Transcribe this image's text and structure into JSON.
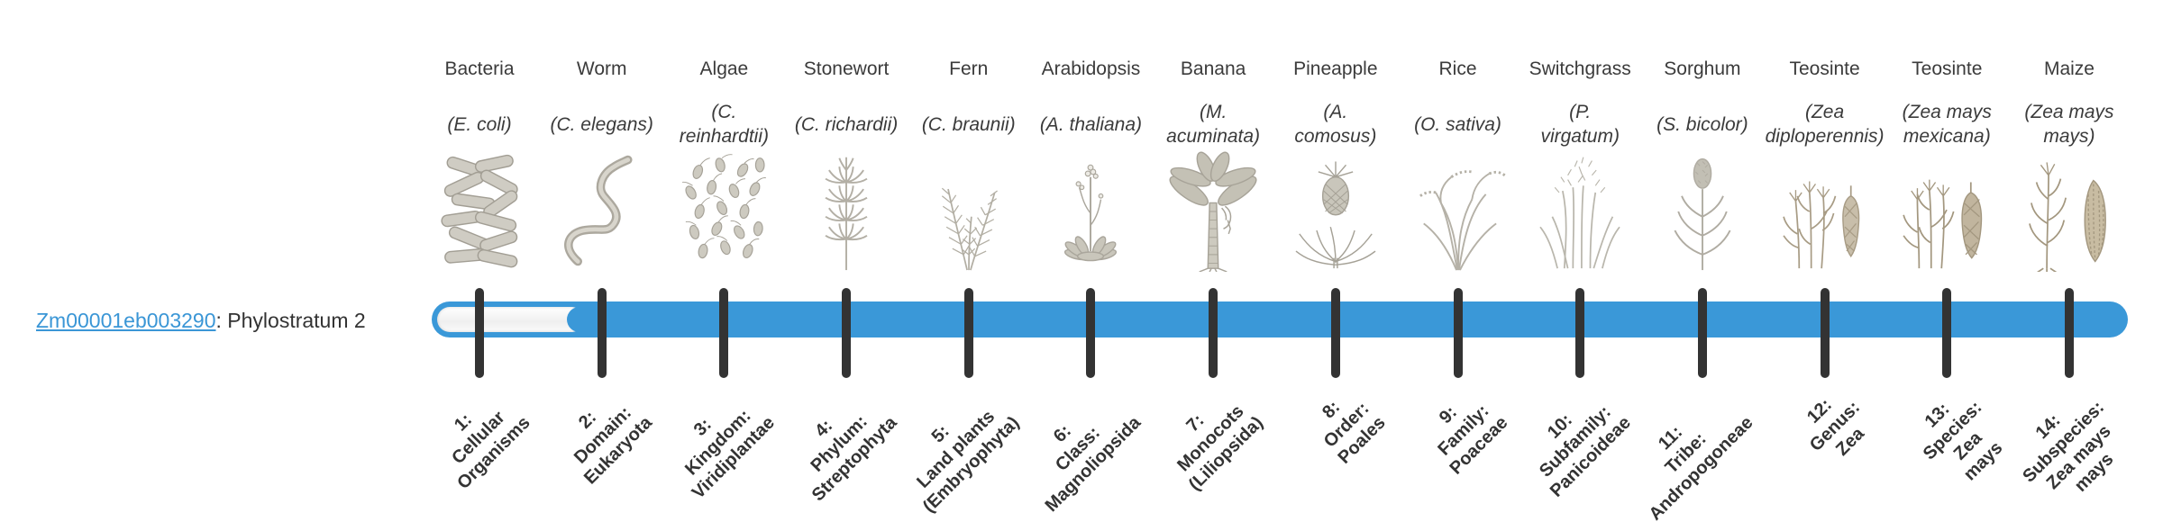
{
  "gene": {
    "id": "Zm00001eb003290",
    "phylostratum_text": ": Phylostratum 2"
  },
  "colors": {
    "bar_blue": "#3a98d8",
    "tick_dark": "#333333",
    "link_blue": "#3a96d6",
    "text_dark": "#3b3b3b"
  },
  "bar": {
    "filled_from_stratum": 2,
    "total_strata": 14
  },
  "strata": [
    {
      "tick_label": "1:\nCellular\nOrganisms",
      "organism": "Bacteria",
      "species": "(E. coli)",
      "icon": "bacteria"
    },
    {
      "tick_label": "2:\nDomain:\nEukaryota",
      "organism": "Worm",
      "species": "(C. elegans)",
      "icon": "worm"
    },
    {
      "tick_label": "3:\nKingdom:\nViridiplantae",
      "organism": "Algae",
      "species": "(C.\nreinhardtii)",
      "icon": "algae"
    },
    {
      "tick_label": "4:\nPhylum:\nStreptophyta",
      "organism": "Stonewort",
      "species": "(C. richardii)",
      "icon": "stonewort"
    },
    {
      "tick_label": "5:\nLand plants\n(Embryophyta)",
      "organism": "Fern",
      "species": "(C. braunii)",
      "icon": "fern"
    },
    {
      "tick_label": "6:\nClass:\nMagnoliopsida",
      "organism": "Arabidopsis",
      "species": "(A. thaliana)",
      "icon": "arabidopsis"
    },
    {
      "tick_label": "7:\nMonocots\n(Liliopsida)",
      "organism": "Banana",
      "species": "(M.\nacuminata)",
      "icon": "banana"
    },
    {
      "tick_label": "8:\nOrder:\nPoales",
      "organism": "Pineapple",
      "species": "(A.\ncomosus)",
      "icon": "pineapple"
    },
    {
      "tick_label": "9:\nFamily:\nPoaceae",
      "organism": "Rice",
      "species": "(O. sativa)",
      "icon": "rice"
    },
    {
      "tick_label": "10:\nSubfamily:\nPanicoideae",
      "organism": "Switchgrass",
      "species": "(P.\nvirgatum)",
      "icon": "switchgrass"
    },
    {
      "tick_label": "11:\nTribe:\nAndropogoneae",
      "organism": "Sorghum",
      "species": "(S. bicolor)",
      "icon": "sorghum"
    },
    {
      "tick_label": "12:\nGenus:\nZea",
      "organism": "Teosinte",
      "species": "(Zea\ndiploperennis)",
      "icon": "teosinte"
    },
    {
      "tick_label": "13:\nSpecies:\nZea\nmays",
      "organism": "Teosinte",
      "species": "(Zea mays\nmexicana)",
      "icon": "teosinte-mexicana"
    },
    {
      "tick_label": "14:\nSubspecies:\nZea mays\nmays",
      "organism": "Maize",
      "species": "(Zea mays\nmays)",
      "icon": "maize"
    }
  ]
}
